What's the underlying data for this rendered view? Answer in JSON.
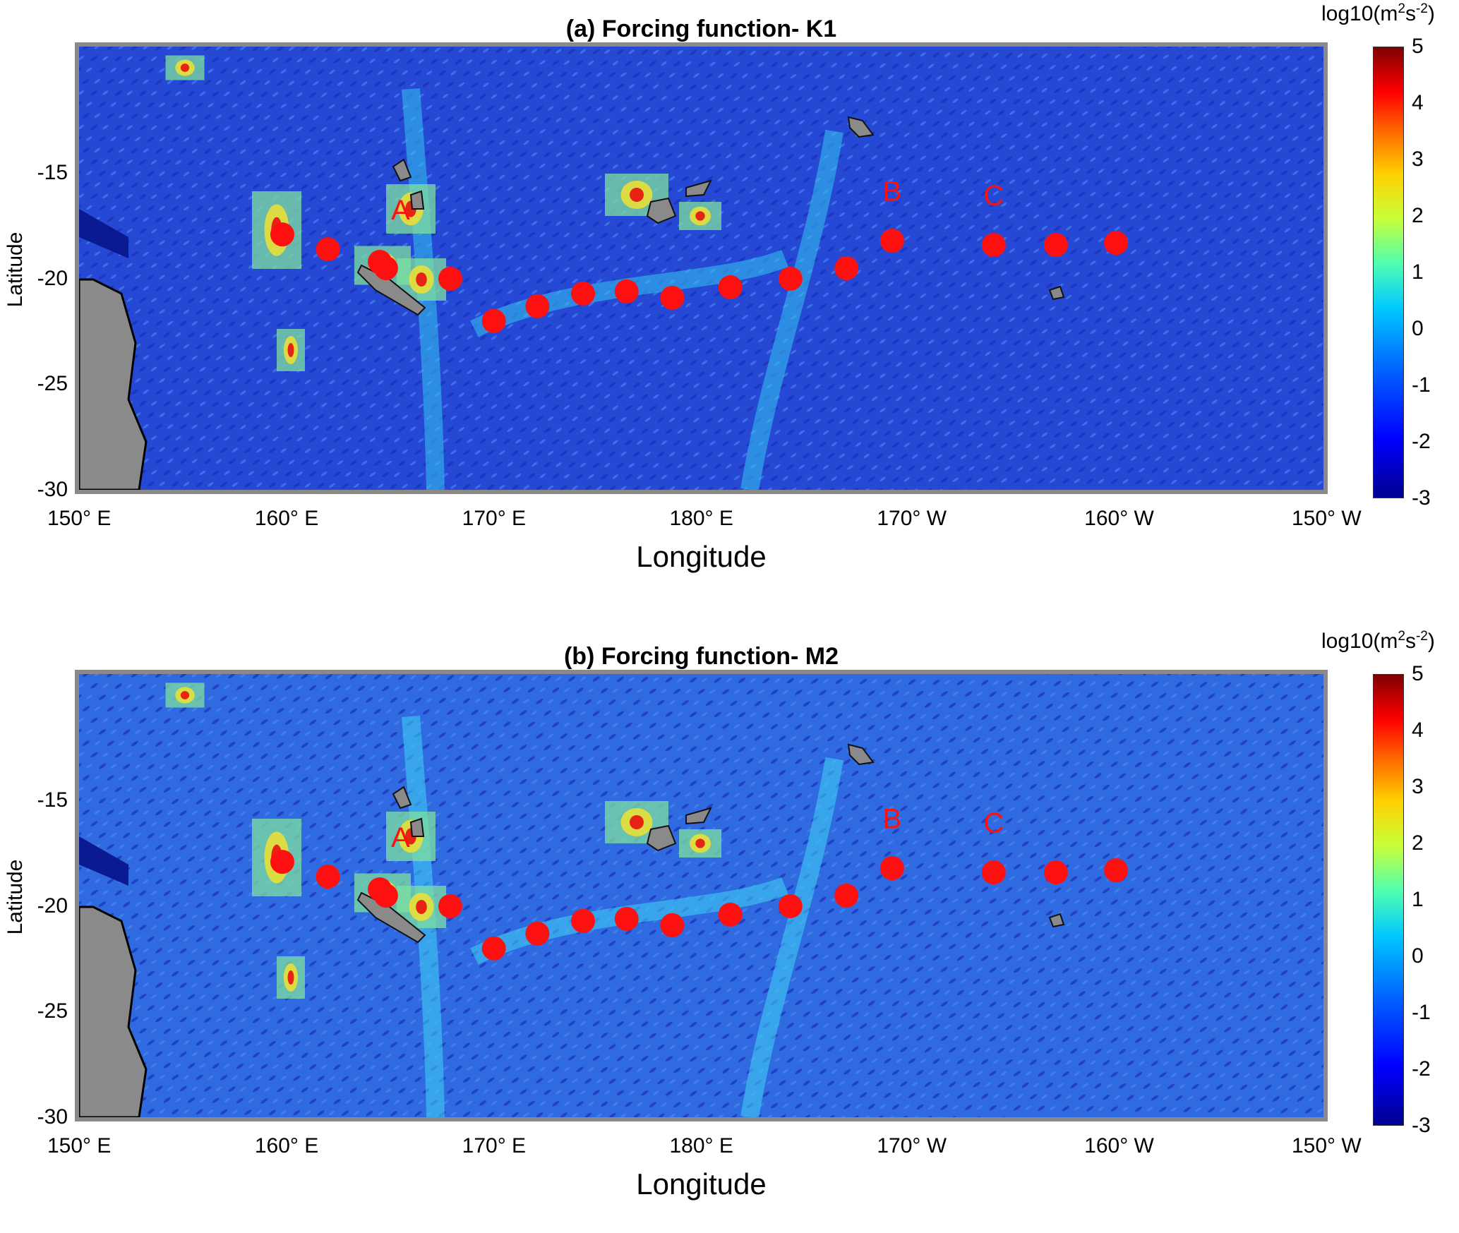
{
  "panels": [
    {
      "title": "(a) Forcing function- K1",
      "colorbar_label": {
        "prefix": "log10(m",
        "sup1": "2",
        "mid": "s",
        "sup2": "-2",
        "suffix": ")"
      },
      "xlabel": "Longitude",
      "ylabel": "Latitude"
    },
    {
      "title": "(b) Forcing function- M2",
      "colorbar_label": {
        "prefix": "log10(m",
        "sup1": "2",
        "mid": "s",
        "sup2": "-2",
        "suffix": ")"
      },
      "xlabel": "Longitude",
      "ylabel": "Latitude"
    }
  ],
  "x_ticks": [
    {
      "label": "150° E",
      "lon": 150
    },
    {
      "label": "160° E",
      "lon": 160
    },
    {
      "label": "170° E",
      "lon": 170
    },
    {
      "label": "180°  E",
      "lon": 180
    },
    {
      "label": "170°  W",
      "lon": 190
    },
    {
      "label": "160°  W",
      "lon": 200
    },
    {
      "label": "150°  W",
      "lon": 210
    }
  ],
  "y_ticks": [
    {
      "label": "-15",
      "lat": -15
    },
    {
      "label": "-20",
      "lat": -20
    },
    {
      "label": "-25",
      "lat": -25
    },
    {
      "label": "-30",
      "lat": -30
    }
  ],
  "colorbar_ticks": [
    "5",
    "4",
    "3",
    "2",
    "1",
    "0",
    "-1",
    "-2",
    "-3"
  ],
  "colorbar_range": [
    -3,
    5
  ],
  "map_extent": {
    "lon": [
      150,
      210
    ],
    "lat": [
      -30,
      -9
    ]
  },
  "station_labels": [
    {
      "text": "A",
      "lon": 165.5,
      "lat": -17.2
    },
    {
      "text": "B",
      "lon": 189.2,
      "lat": -16.3
    },
    {
      "text": "C",
      "lon": 194.1,
      "lat": -16.5
    }
  ],
  "stations": [
    {
      "lon": 159.8,
      "lat": -17.9
    },
    {
      "lon": 162.0,
      "lat": -18.6
    },
    {
      "lon": 164.5,
      "lat": -19.2
    },
    {
      "lon": 164.8,
      "lat": -19.5
    },
    {
      "lon": 167.9,
      "lat": -20.0
    },
    {
      "lon": 170.0,
      "lat": -22.0
    },
    {
      "lon": 172.1,
      "lat": -21.3
    },
    {
      "lon": 174.3,
      "lat": -20.7
    },
    {
      "lon": 176.4,
      "lat": -20.6
    },
    {
      "lon": 178.6,
      "lat": -20.9
    },
    {
      "lon": 181.4,
      "lat": -20.4
    },
    {
      "lon": 184.3,
      "lat": -20.0
    },
    {
      "lon": 187.0,
      "lat": -19.5
    },
    {
      "lon": 189.2,
      "lat": -18.2
    },
    {
      "lon": 194.1,
      "lat": -18.4
    },
    {
      "lon": 197.1,
      "lat": -18.4
    },
    {
      "lon": 200.0,
      "lat": -18.3
    }
  ],
  "colors": {
    "station": "#ff1010",
    "land": "#8a8a8a",
    "ocean": "#2a4fd6"
  }
}
